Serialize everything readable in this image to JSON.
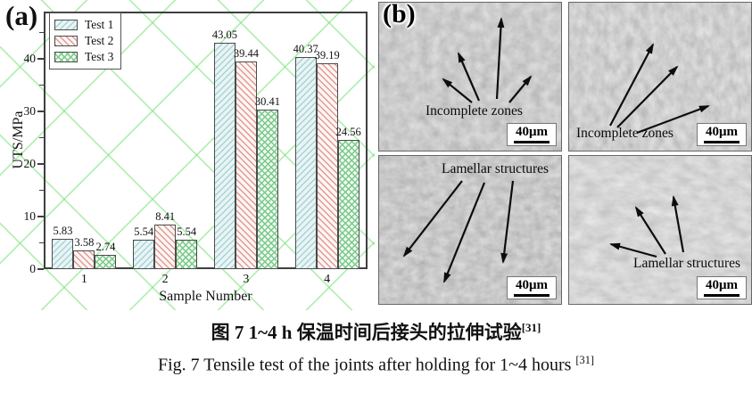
{
  "panel_a": {
    "label": "(a)",
    "watermark_color": "#76e276"
  },
  "chart_data": {
    "type": "bar",
    "title": "",
    "xlabel": "Sample Number",
    "ylabel": "UTS/MPa",
    "categories": [
      "1",
      "2",
      "3",
      "4"
    ],
    "series": [
      {
        "name": "Test 1",
        "values": [
          5.83,
          5.54,
          43.05,
          40.37
        ],
        "fill": "#e9f4f5",
        "hatch": "diagonal",
        "hatch_color": "#a9d3d6"
      },
      {
        "name": "Test 2",
        "values": [
          3.58,
          8.41,
          39.44,
          39.19
        ],
        "fill": "#fdf5f4",
        "hatch": "diagonal-back",
        "hatch_color": "#e09a93"
      },
      {
        "name": "Test 3",
        "values": [
          2.74,
          5.54,
          30.41,
          24.56
        ],
        "fill": "#f0faef",
        "hatch": "cross",
        "hatch_color": "#79c88b"
      }
    ],
    "ylim": [
      0,
      49
    ],
    "yticks": [
      0,
      10,
      20,
      30,
      40
    ],
    "minor_tick_step": 5,
    "bar_labels": true,
    "legend_position": "top-left",
    "grid": false,
    "bar_edge_color": "#4c4c4c"
  },
  "panel_b": {
    "label": "(b)",
    "micrographs": [
      {
        "id": "top-left",
        "annotation": "Incomplete zones",
        "scale_label": "40μm"
      },
      {
        "id": "top-right",
        "annotation": "Incomplete zones",
        "scale_label": "40μm"
      },
      {
        "id": "bottom-left",
        "annotation": "Lamellar structures",
        "scale_label": "40μm"
      },
      {
        "id": "bottom-right",
        "annotation": "Lamellar structures",
        "scale_label": "40μm"
      }
    ]
  },
  "caption": {
    "zh": "图 7 1~4 h 保温时间后接头的拉伸试验",
    "zh_ref": "[31]",
    "en": "Fig. 7 Tensile test of the joints after holding for 1~4 hours",
    "en_ref": "[31]"
  }
}
